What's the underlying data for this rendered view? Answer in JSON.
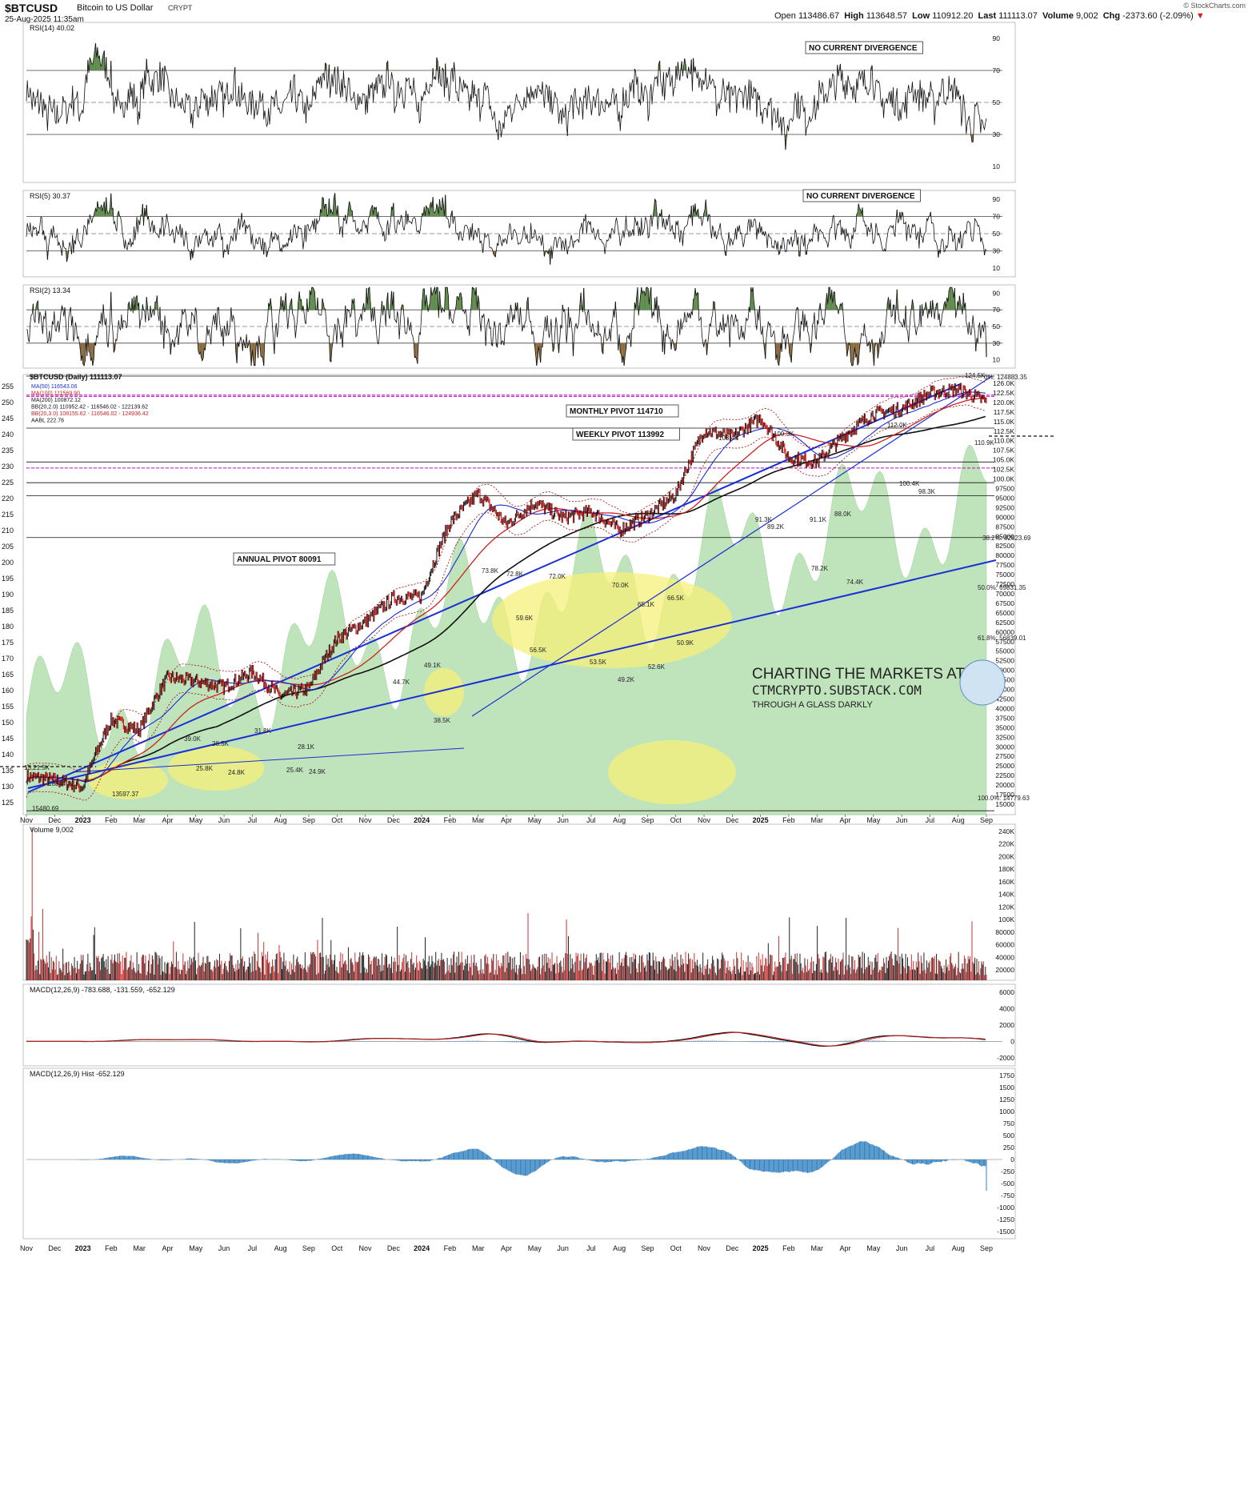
{
  "header": {
    "symbol": "$BTCUSD",
    "name": "Bitcoin to US Dollar",
    "exchange": "CRYPT",
    "datetime": "25-Aug-2025 11:35am",
    "credit": "© StockCharts.com",
    "open_label": "Open",
    "open": "113486.67",
    "high_label": "High",
    "high": "113648.57",
    "low_label": "Low",
    "low": "110912.20",
    "last_label": "Last",
    "last": "111113.07",
    "volume_label": "Volume",
    "volume": "9,002",
    "chg_label": "Chg",
    "chg": "-2373.60 (-2.09%)"
  },
  "colors": {
    "green_fill": "#5d8a4a",
    "brown_fill": "#8b6b3d",
    "price_area": "#b5dfb0",
    "red": "#cc2222",
    "blue": "#1a2fd6",
    "magenta": "#cc00cc",
    "yellow": "#f5f07a",
    "vol_red": "#cc3333",
    "vol_black": "#222222",
    "hist_blue": "#2f7fbf"
  },
  "x_axis": {
    "months": [
      "Nov",
      "Dec",
      "2023",
      "Feb",
      "Mar",
      "Apr",
      "May",
      "Jun",
      "Jul",
      "Aug",
      "Sep",
      "Oct",
      "Nov",
      "Dec",
      "2024",
      "Feb",
      "Mar",
      "Apr",
      "May",
      "Jun",
      "Jul",
      "Aug",
      "Sep",
      "Oct",
      "Nov",
      "Dec",
      "2025",
      "Feb",
      "Mar",
      "Apr",
      "May",
      "Jun",
      "Jul",
      "Aug",
      "Sep"
    ]
  },
  "chart_data": [
    {
      "type": "line",
      "name": "rsi14",
      "label": "RSI(14) 40.02",
      "ylim": [
        0,
        100
      ],
      "ticks": [
        "90",
        "70",
        "50",
        "30",
        "10"
      ],
      "ref_levels": [
        70,
        50,
        30
      ],
      "annotation": "NO CURRENT DIVERGENCE",
      "last": 40.02
    },
    {
      "type": "line",
      "name": "rsi5",
      "label": "RSI(5) 30.37",
      "ylim": [
        0,
        100
      ],
      "ticks": [
        "90",
        "70",
        "50",
        "30",
        "10"
      ],
      "ref_levels": [
        70,
        50,
        30
      ],
      "annotation": "NO CURRENT DIVERGENCE",
      "last": 30.37
    },
    {
      "type": "line",
      "name": "rsi2",
      "label": "RSI(2) 13.34",
      "ylim": [
        0,
        100
      ],
      "ticks": [
        "90",
        "70",
        "50",
        "30",
        "10"
      ],
      "ref_levels": [
        70,
        50,
        30
      ],
      "last": 13.34
    },
    {
      "type": "line",
      "name": "price",
      "label": "$BTCUSD (Daily) 111113.07",
      "legend": [
        "MA(50) 116543.06",
        "MA(100) 111569.90",
        "MA(200) 100872.12",
        "BB(20,2.0) 110952.42 - 116546.02 - 122139.62",
        "BB(20,3.0) 108155.62 - 116546.02 - 124936.42",
        "AABL 222.76"
      ],
      "right_ticks": [
        "126.0K",
        "122.5K",
        "120.0K",
        "117.5K",
        "115.0K",
        "112.5K",
        "110.0K",
        "107.5K",
        "105.0K",
        "102.5K",
        "100.0K",
        "97500",
        "95000",
        "92500",
        "90000",
        "87500",
        "85000",
        "82500",
        "80000",
        "77500",
        "75000",
        "72500",
        "70000",
        "67500",
        "65000",
        "62500",
        "60000",
        "57500",
        "55000",
        "52500",
        "50000",
        "47500",
        "45000",
        "42500",
        "40000",
        "37500",
        "35000",
        "32500",
        "30000",
        "27500",
        "25000",
        "22500",
        "20000",
        "17500",
        "15000"
      ],
      "left_ticks": [
        "255",
        "250",
        "245",
        "240",
        "235",
        "230",
        "225",
        "220",
        "215",
        "210",
        "205",
        "200",
        "195",
        "190",
        "185",
        "180",
        "175",
        "170",
        "165",
        "160",
        "155",
        "150",
        "145",
        "140",
        "135",
        "130",
        "125"
      ],
      "annotations": [
        "MONTHLY PIVOT 114710",
        "WEEKLY PIVOT 113992",
        "ANNUAL PIVOT 80091",
        "13,21.5K",
        "18344.32",
        "15480.69",
        "13597.37",
        "39.0K",
        "28.5K",
        "25.8K",
        "24.8K",
        "31.8K",
        "28.1K",
        "25.4K",
        "24.9K",
        "44.7K",
        "49.1K",
        "38.5K",
        "73.8K",
        "72.8K",
        "72.0K",
        "70.0K",
        "65.1K",
        "66.5K",
        "59.6K",
        "56.5K",
        "53.5K",
        "52.6K",
        "50.9K",
        "49.2K",
        "108.4K",
        "109.3K",
        "91.3K",
        "89.2K",
        "91.1K",
        "88.0K",
        "78.2K",
        "74.4K",
        "112.0K",
        "100.4K",
        "98.3K",
        "124.5K",
        "110.9K",
        "0%: 124883.35",
        "38.2%: 82823.69",
        "50.0%: 69831.35",
        "61.8%: 56839.01",
        "100.0%: 14779.63"
      ],
      "points": [
        [
          0,
          17500
        ],
        [
          1,
          17200
        ],
        [
          2,
          16600
        ],
        [
          3,
          23100
        ],
        [
          4,
          22000
        ],
        [
          5,
          28500
        ],
        [
          6,
          28000
        ],
        [
          7,
          27200
        ],
        [
          8,
          29300
        ],
        [
          9,
          26000
        ],
        [
          10,
          27000
        ],
        [
          11,
          34500
        ],
        [
          12,
          37500
        ],
        [
          13,
          42200
        ],
        [
          14,
          42500
        ],
        [
          15,
          61200
        ],
        [
          16,
          70500
        ],
        [
          17,
          60600
        ],
        [
          18,
          67500
        ],
        [
          19,
          62700
        ],
        [
          20,
          64600
        ],
        [
          21,
          59000
        ],
        [
          22,
          63300
        ],
        [
          23,
          70200
        ],
        [
          24,
          96400
        ],
        [
          25,
          93400
        ],
        [
          26,
          102400
        ],
        [
          27,
          84300
        ],
        [
          28,
          82500
        ],
        [
          29,
          94200
        ],
        [
          30,
          104600
        ],
        [
          31,
          107100
        ],
        [
          32,
          115800
        ],
        [
          33,
          118000
        ],
        [
          34,
          111113
        ]
      ]
    },
    {
      "type": "bar",
      "name": "volume",
      "label": "Volume 9,002",
      "ticks": [
        "240K",
        "220K",
        "200K",
        "180K",
        "160K",
        "140K",
        "120K",
        "100K",
        "80000",
        "60000",
        "40000",
        "20000"
      ],
      "ylim": [
        0,
        250000
      ],
      "last": 9002
    },
    {
      "type": "line",
      "name": "macd",
      "label": "MACD(12,26,9) -783.688, -131.559, -652.129",
      "ticks": [
        "6000",
        "4000",
        "2000",
        "0",
        "-2000"
      ],
      "ylim": [
        -3000,
        7000
      ],
      "values": [
        -783.688,
        -131.559,
        -652.129
      ]
    },
    {
      "type": "bar",
      "name": "macd_hist",
      "label": "MACD(12,26,9) Hist -652.129",
      "ticks": [
        "1750",
        "1500",
        "1250",
        "1000",
        "750",
        "500",
        "250",
        "0",
        "-250",
        "-500",
        "-750",
        "-1000",
        "-1250",
        "-1500"
      ],
      "ylim": [
        -1650,
        1900
      ],
      "last": -652.129
    }
  ],
  "watermark": {
    "line1": "CHARTING THE MARKETS AT",
    "line2": "CTMCRYPTO.SUBSTACK.COM",
    "line3": "THROUGH A GLASS DARKLY"
  }
}
